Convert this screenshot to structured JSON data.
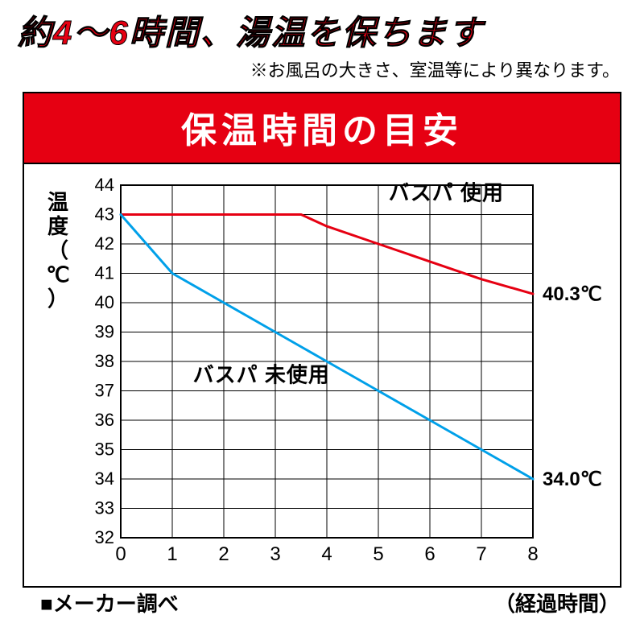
{
  "headline": "約4〜6時間、湯温を保ちます",
  "subnote": "※お風呂の大きさ、室温等により異なります。",
  "banner": "保温時間の目安",
  "chart": {
    "type": "line",
    "y_label": "温度（℃）",
    "x_label": "（経過時間）",
    "source_label": "■メーカー調べ",
    "ylim": [
      32,
      44
    ],
    "ytick_step": 1,
    "xlim": [
      0,
      8
    ],
    "xtick_step": 1,
    "background_color": "#ffffff",
    "grid_color": "#000000",
    "axis_color": "#000000",
    "tick_fontsize": 22,
    "label_fontsize": 26,
    "line_width": 3,
    "series": [
      {
        "name": "バスパ 使用",
        "color": "#e60012",
        "points": [
          [
            0,
            43
          ],
          [
            1,
            43
          ],
          [
            2,
            43
          ],
          [
            3,
            43
          ],
          [
            3.5,
            43
          ],
          [
            4,
            42.6
          ],
          [
            5,
            42
          ],
          [
            6,
            41.4
          ],
          [
            7,
            40.8
          ],
          [
            8,
            40.3
          ]
        ],
        "end_label": "40.3℃",
        "label_xy": [
          5.2,
          43.5
        ]
      },
      {
        "name": "バスパ 未使用",
        "color": "#00a0e9",
        "points": [
          [
            0,
            43
          ],
          [
            1,
            41
          ],
          [
            2,
            40
          ],
          [
            3,
            39
          ],
          [
            4,
            38
          ],
          [
            5,
            37
          ],
          [
            6,
            36
          ],
          [
            7,
            35
          ],
          [
            8,
            34
          ]
        ],
        "end_label": "34.0℃",
        "label_xy": [
          1.4,
          37.3
        ]
      }
    ]
  }
}
